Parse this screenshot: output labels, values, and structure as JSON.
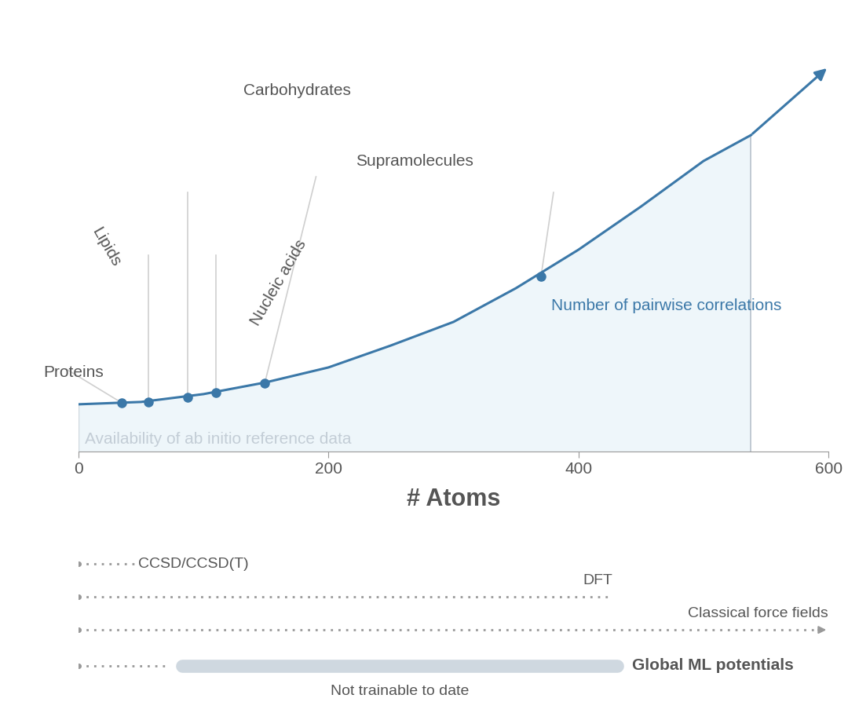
{
  "chart_data": {
    "type": "line",
    "xlabel": "# Atoms",
    "xlim": [
      0,
      600
    ],
    "xticks": [
      0,
      200,
      400,
      600
    ],
    "ylim": [
      0,
      500
    ],
    "tick_labels": "x",
    "grid": false,
    "series": [
      {
        "name": "Number of pairwise correlations",
        "color": "#3b78a8",
        "x": [
          0,
          50,
          100,
          150,
          200,
          250,
          300,
          350,
          400,
          450,
          500,
          538,
          600
        ],
        "values": [
          60,
          63,
          73,
          88,
          107,
          135,
          165,
          208,
          257,
          312,
          370,
          403,
          490
        ]
      }
    ],
    "points": [
      {
        "label": "Proteins",
        "x": 34.5,
        "y": 62
      },
      {
        "label": "Lipids",
        "x": 56,
        "y": 63
      },
      {
        "label": "Carbohydrates",
        "x": 87,
        "y": 69
      },
      {
        "label": "Nucleic acids",
        "x": 110,
        "y": 75
      },
      {
        "label": "Supramolecules",
        "x": 149,
        "y": 87
      },
      {
        "label": null,
        "x": 370,
        "y": 223
      }
    ],
    "shaded_region": {
      "label": "Availability of ab initio reference data",
      "start": 0,
      "end": 538,
      "color": "#eef6fa"
    },
    "methods": [
      {
        "name": "CCSD/CCSD(T)",
        "start": 0,
        "end": 45
      },
      {
        "name": "DFT",
        "start": 0,
        "end": 427
      },
      {
        "name": "Classical force fields",
        "start": 0,
        "end": 600
      },
      {
        "name": "Global ML potentials",
        "start": 0,
        "end": 73
      }
    ],
    "untrainable": {
      "label": "Not trainable to date",
      "start": 83,
      "end": 431,
      "color": "#cfd8e0"
    }
  }
}
